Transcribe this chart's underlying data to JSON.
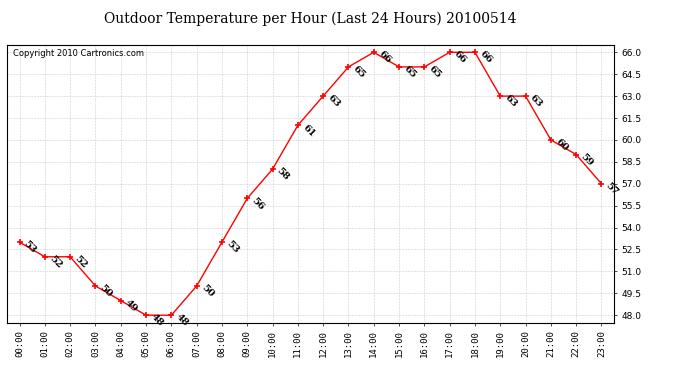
{
  "title": "Outdoor Temperature per Hour (Last 24 Hours) 20100514",
  "copyright": "Copyright 2010 Cartronics.com",
  "hours": [
    "00:00",
    "01:00",
    "02:00",
    "03:00",
    "04:00",
    "05:00",
    "06:00",
    "07:00",
    "08:00",
    "09:00",
    "10:00",
    "11:00",
    "12:00",
    "13:00",
    "14:00",
    "15:00",
    "16:00",
    "17:00",
    "18:00",
    "19:00",
    "20:00",
    "21:00",
    "22:00",
    "23:00"
  ],
  "values": [
    53,
    52,
    52,
    50,
    49,
    48,
    48,
    50,
    53,
    56,
    58,
    61,
    63,
    65,
    66,
    65,
    65,
    66,
    66,
    63,
    63,
    60,
    59,
    57
  ],
  "ylim": [
    47.5,
    66.5
  ],
  "yticks": [
    48.0,
    49.5,
    51.0,
    52.5,
    54.0,
    55.5,
    57.0,
    58.5,
    60.0,
    61.5,
    63.0,
    64.5,
    66.0
  ],
  "line_color": "red",
  "marker": "+",
  "marker_size": 5,
  "marker_color": "red",
  "bg_color": "white",
  "grid_color": "#cccccc",
  "label_fontsize": 7,
  "title_fontsize": 10,
  "copyright_fontsize": 6,
  "xtick_fontsize": 6.5,
  "ytick_fontsize": 6.5
}
